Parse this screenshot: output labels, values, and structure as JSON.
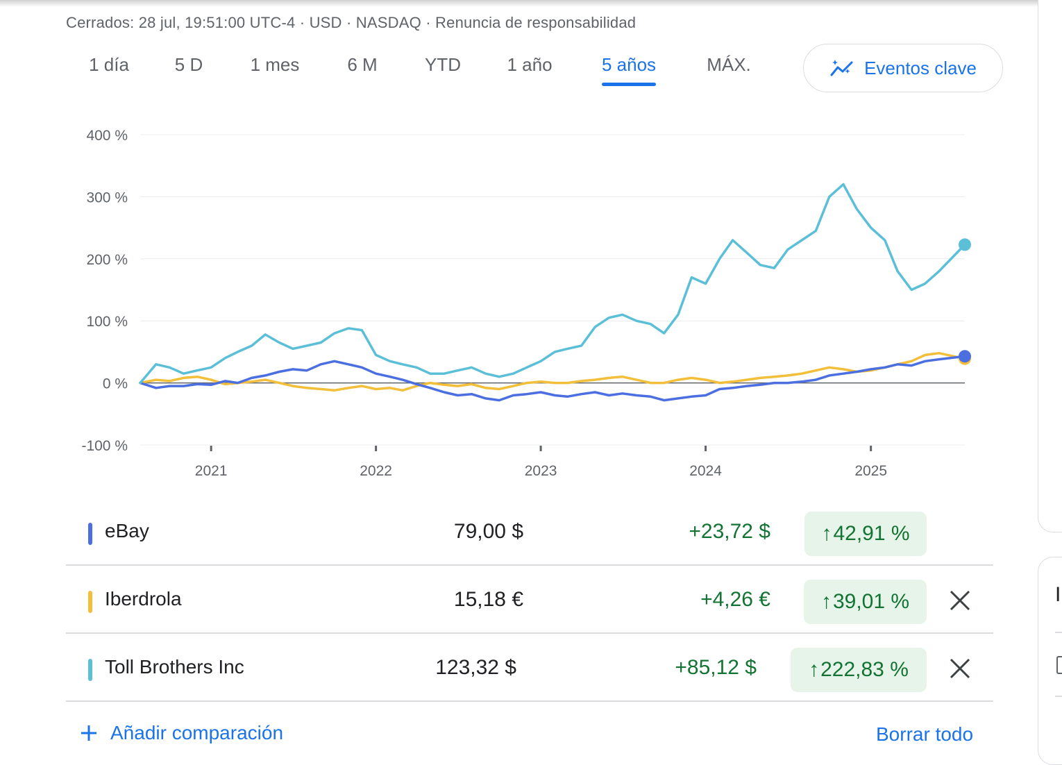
{
  "status_line": "Cerrados: 28 jul, 19:51:00 UTC-4 · USD · NASDAQ · Renuncia de responsabilidad",
  "range_tabs": [
    "1 día",
    "5 D",
    "1 mes",
    "6 M",
    "YTD",
    "1 año",
    "5 años",
    "MÁX."
  ],
  "active_tab": "5 años",
  "events_button": {
    "label": "Eventos clave",
    "icon": "sparkline-chart-icon"
  },
  "chart_data": {
    "type": "line",
    "title": "",
    "xlabel": "",
    "ylabel": "",
    "x_ticks": [
      "2021",
      "2022",
      "2023",
      "2024",
      "2025"
    ],
    "y_ticks": [
      "400 %",
      "300 %",
      "200 %",
      "100 %",
      "0 %",
      "-100 %"
    ],
    "ylim": [
      -100,
      400
    ],
    "xlim": [
      "2020-07-28",
      "2025-07-28"
    ],
    "grid": true,
    "zero_line": true,
    "series": [
      {
        "name": "eBay",
        "color": "#4b6fe0",
        "x": [
          "2020-07-28",
          "2020-09-01",
          "2020-10-01",
          "2020-11-01",
          "2020-12-01",
          "2021-01-01",
          "2021-02-01",
          "2021-03-01",
          "2021-04-01",
          "2021-05-01",
          "2021-06-01",
          "2021-07-01",
          "2021-08-01",
          "2021-09-01",
          "2021-10-01",
          "2021-11-01",
          "2021-12-01",
          "2022-01-01",
          "2022-02-01",
          "2022-03-01",
          "2022-04-01",
          "2022-05-01",
          "2022-06-01",
          "2022-07-01",
          "2022-08-01",
          "2022-09-01",
          "2022-10-01",
          "2022-11-01",
          "2022-12-01",
          "2023-01-01",
          "2023-02-01",
          "2023-03-01",
          "2023-04-01",
          "2023-05-01",
          "2023-06-01",
          "2023-07-01",
          "2023-08-01",
          "2023-09-01",
          "2023-10-01",
          "2023-11-01",
          "2023-12-01",
          "2024-01-01",
          "2024-02-01",
          "2024-03-01",
          "2024-04-01",
          "2024-05-01",
          "2024-06-01",
          "2024-07-01",
          "2024-08-01",
          "2024-09-01",
          "2024-10-01",
          "2024-11-01",
          "2024-12-01",
          "2025-01-01",
          "2025-02-01",
          "2025-03-01",
          "2025-04-01",
          "2025-05-01",
          "2025-06-01",
          "2025-07-28"
        ],
        "values": [
          0,
          -8,
          -5,
          -5,
          -2,
          -3,
          3,
          0,
          8,
          12,
          18,
          22,
          20,
          30,
          35,
          30,
          25,
          15,
          10,
          5,
          -2,
          -8,
          -15,
          -20,
          -18,
          -25,
          -28,
          -20,
          -18,
          -15,
          -20,
          -22,
          -18,
          -15,
          -20,
          -17,
          -20,
          -22,
          -28,
          -25,
          -22,
          -20,
          -10,
          -8,
          -5,
          -3,
          0,
          0,
          2,
          5,
          12,
          15,
          18,
          22,
          25,
          30,
          28,
          35,
          38,
          42.91
        ]
      },
      {
        "name": "Iberdrola",
        "color": "#f3bf3a",
        "x": [
          "2020-07-28",
          "2020-09-01",
          "2020-10-01",
          "2020-11-01",
          "2020-12-01",
          "2021-01-01",
          "2021-02-01",
          "2021-03-01",
          "2021-04-01",
          "2021-05-01",
          "2021-06-01",
          "2021-07-01",
          "2021-08-01",
          "2021-09-01",
          "2021-10-01",
          "2021-11-01",
          "2021-12-01",
          "2022-01-01",
          "2022-02-01",
          "2022-03-01",
          "2022-04-01",
          "2022-05-01",
          "2022-06-01",
          "2022-07-01",
          "2022-08-01",
          "2022-09-01",
          "2022-10-01",
          "2022-11-01",
          "2022-12-01",
          "2023-01-01",
          "2023-02-01",
          "2023-03-01",
          "2023-04-01",
          "2023-05-01",
          "2023-06-01",
          "2023-07-01",
          "2023-08-01",
          "2023-09-01",
          "2023-10-01",
          "2023-11-01",
          "2023-12-01",
          "2024-01-01",
          "2024-02-01",
          "2024-03-01",
          "2024-04-01",
          "2024-05-01",
          "2024-06-01",
          "2024-07-01",
          "2024-08-01",
          "2024-09-01",
          "2024-10-01",
          "2024-11-01",
          "2024-12-01",
          "2025-01-01",
          "2025-02-01",
          "2025-03-01",
          "2025-04-01",
          "2025-05-01",
          "2025-06-01",
          "2025-07-28"
        ],
        "values": [
          0,
          5,
          3,
          8,
          10,
          5,
          -2,
          0,
          2,
          5,
          0,
          -5,
          -8,
          -10,
          -12,
          -8,
          -5,
          -10,
          -8,
          -12,
          -5,
          0,
          -3,
          -5,
          -2,
          -8,
          -10,
          -5,
          0,
          2,
          0,
          0,
          3,
          5,
          8,
          10,
          5,
          0,
          0,
          5,
          8,
          5,
          0,
          2,
          5,
          8,
          10,
          12,
          15,
          20,
          25,
          22,
          18,
          20,
          25,
          30,
          35,
          45,
          48,
          39.01
        ]
      },
      {
        "name": "Toll Brothers Inc",
        "color": "#5bbfd8",
        "x": [
          "2020-07-28",
          "2020-09-01",
          "2020-10-01",
          "2020-11-01",
          "2020-12-01",
          "2021-01-01",
          "2021-02-01",
          "2021-03-01",
          "2021-04-01",
          "2021-05-01",
          "2021-06-01",
          "2021-07-01",
          "2021-08-01",
          "2021-09-01",
          "2021-10-01",
          "2021-11-01",
          "2021-12-01",
          "2022-01-01",
          "2022-02-01",
          "2022-03-01",
          "2022-04-01",
          "2022-05-01",
          "2022-06-01",
          "2022-07-01",
          "2022-08-01",
          "2022-09-01",
          "2022-10-01",
          "2022-11-01",
          "2022-12-01",
          "2023-01-01",
          "2023-02-01",
          "2023-03-01",
          "2023-04-01",
          "2023-05-01",
          "2023-06-01",
          "2023-07-01",
          "2023-08-01",
          "2023-09-01",
          "2023-10-01",
          "2023-11-01",
          "2023-12-01",
          "2024-01-01",
          "2024-02-01",
          "2024-03-01",
          "2024-04-01",
          "2024-05-01",
          "2024-06-01",
          "2024-07-01",
          "2024-08-01",
          "2024-09-01",
          "2024-10-01",
          "2024-11-01",
          "2024-12-01",
          "2025-01-01",
          "2025-02-01",
          "2025-03-01",
          "2025-04-01",
          "2025-05-01",
          "2025-06-01",
          "2025-07-28"
        ],
        "values": [
          0,
          30,
          25,
          15,
          20,
          25,
          40,
          50,
          60,
          78,
          65,
          55,
          60,
          65,
          80,
          88,
          85,
          45,
          35,
          30,
          25,
          15,
          15,
          20,
          25,
          15,
          10,
          15,
          25,
          35,
          50,
          55,
          60,
          90,
          105,
          110,
          100,
          95,
          80,
          110,
          170,
          160,
          200,
          230,
          210,
          190,
          185,
          215,
          230,
          245,
          300,
          320,
          280,
          250,
          230,
          180,
          150,
          160,
          180,
          222.83
        ]
      }
    ]
  },
  "rows": [
    {
      "name": "eBay",
      "color": "#4b6fe0",
      "price": "79,00 $",
      "change": "+23,72 $",
      "percent": "42,91 %",
      "removable": false
    },
    {
      "name": "Iberdrola",
      "color": "#f3bf3a",
      "price": "15,18 €",
      "change": "+4,26 €",
      "percent": "39,01 %",
      "removable": true
    },
    {
      "name": "Toll Brothers Inc",
      "color": "#5bbfd8",
      "price": "123,32 $",
      "change": "+85,12 $",
      "percent": "222,83 %",
      "removable": true
    }
  ],
  "add_comparison_label": "Añadir comparación",
  "clear_all_label": "Borrar todo",
  "right_panel_text": "I"
}
